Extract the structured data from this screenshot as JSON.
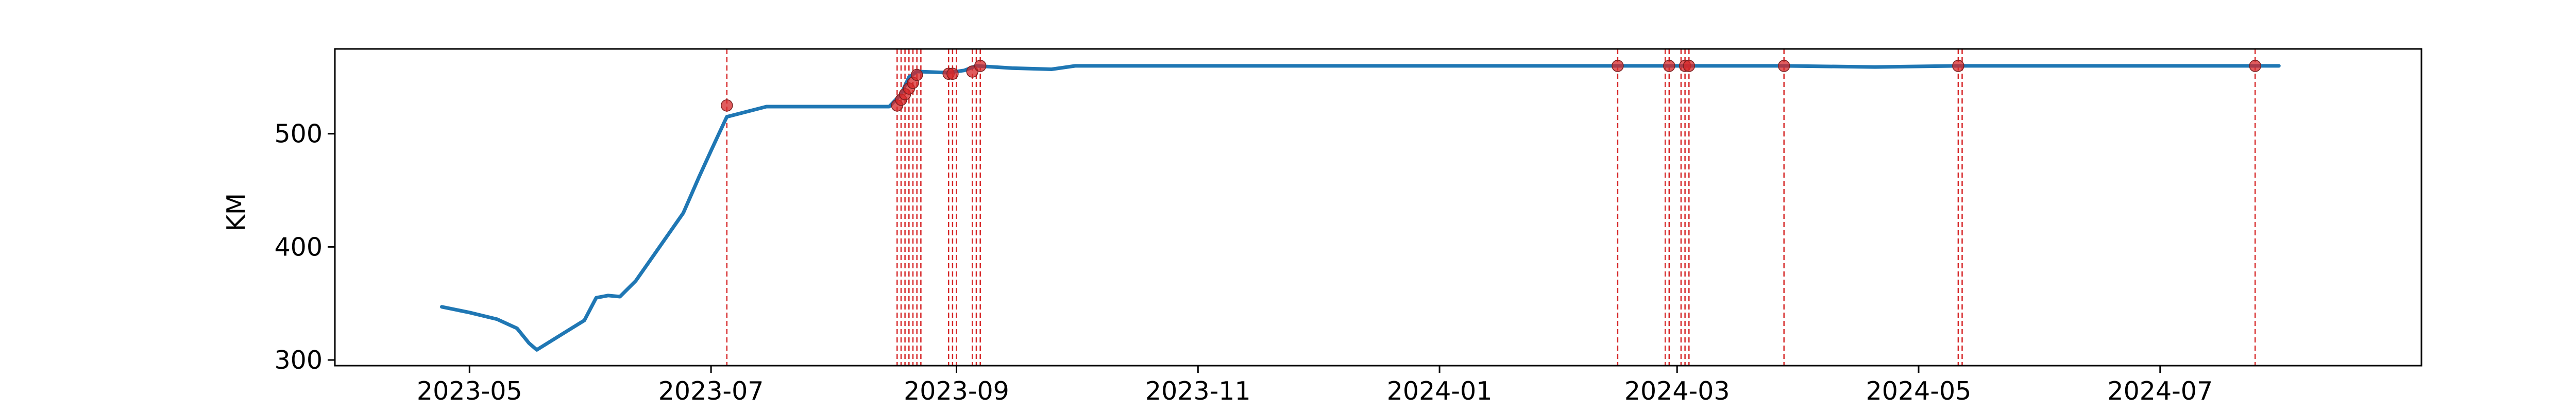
{
  "chart_data": {
    "type": "line",
    "title": "",
    "xlabel": "",
    "ylabel": "KM",
    "x_axis": "date",
    "xlim": [
      "2023-03-28",
      "2024-09-05"
    ],
    "ylim": [
      295,
      575
    ],
    "x_ticks": [
      "2023-05",
      "2023-07",
      "2023-09",
      "2023-11",
      "2024-01",
      "2024-03",
      "2024-05",
      "2024-07"
    ],
    "y_ticks": [
      300,
      400,
      500
    ],
    "grid": false,
    "legend": "none",
    "colors": {
      "line": "#1f77b4",
      "event": "#d62728",
      "marker": "#d62728"
    },
    "series": [
      {
        "x": [
          "2023-04-24",
          "2023-05-01",
          "2023-05-08",
          "2023-05-13",
          "2023-05-16",
          "2023-05-18",
          "2023-05-24",
          "2023-05-30",
          "2023-06-02",
          "2023-06-05",
          "2023-06-08",
          "2023-06-12",
          "2023-06-18",
          "2023-06-24",
          "2023-06-28",
          "2023-07-01",
          "2023-07-03",
          "2023-07-05",
          "2023-07-15",
          "2023-08-01",
          "2023-08-15",
          "2023-08-18",
          "2023-08-20",
          "2023-08-22",
          "2023-08-30",
          "2023-09-03",
          "2023-09-06",
          "2023-09-15",
          "2023-09-25",
          "2023-10-01",
          "2023-11-01",
          "2024-01-01",
          "2024-02-15",
          "2024-03-01",
          "2024-03-28",
          "2024-04-20",
          "2024-05-11",
          "2024-06-15",
          "2024-07-25",
          "2024-07-31"
        ],
        "y": [
          347,
          342,
          336,
          328,
          315,
          309,
          322,
          335,
          355,
          357,
          356,
          370,
          400,
          430,
          462,
          485,
          500,
          515,
          524,
          524,
          524,
          535,
          550,
          555,
          554,
          556,
          560,
          558,
          557,
          560,
          560,
          560,
          560,
          560,
          560,
          559,
          560,
          560,
          560,
          560
        ]
      }
    ],
    "events": [
      "2023-07-05",
      "2023-08-17",
      "2023-08-18",
      "2023-08-19",
      "2023-08-20",
      "2023-08-21",
      "2023-08-22",
      "2023-08-23",
      "2023-08-30",
      "2023-08-31",
      "2023-09-01",
      "2023-09-05",
      "2023-09-06",
      "2023-09-07",
      "2024-02-15",
      "2024-02-27",
      "2024-02-28",
      "2024-03-02",
      "2024-03-03",
      "2024-03-04",
      "2024-03-28",
      "2024-05-11",
      "2024-05-12",
      "2024-07-25"
    ],
    "markers": [
      {
        "x": "2023-07-05",
        "y": 525
      },
      {
        "x": "2023-08-17",
        "y": 525
      },
      {
        "x": "2023-08-18",
        "y": 530
      },
      {
        "x": "2023-08-19",
        "y": 535
      },
      {
        "x": "2023-08-20",
        "y": 540
      },
      {
        "x": "2023-08-21",
        "y": 545
      },
      {
        "x": "2023-08-22",
        "y": 552
      },
      {
        "x": "2023-08-30",
        "y": 553
      },
      {
        "x": "2023-08-31",
        "y": 553
      },
      {
        "x": "2023-09-05",
        "y": 555
      },
      {
        "x": "2023-09-07",
        "y": 560
      },
      {
        "x": "2024-02-15",
        "y": 560
      },
      {
        "x": "2024-02-28",
        "y": 560
      },
      {
        "x": "2024-03-03",
        "y": 560
      },
      {
        "x": "2024-03-04",
        "y": 560
      },
      {
        "x": "2024-03-28",
        "y": 560
      },
      {
        "x": "2024-05-11",
        "y": 560
      },
      {
        "x": "2024-07-25",
        "y": 560
      }
    ]
  }
}
